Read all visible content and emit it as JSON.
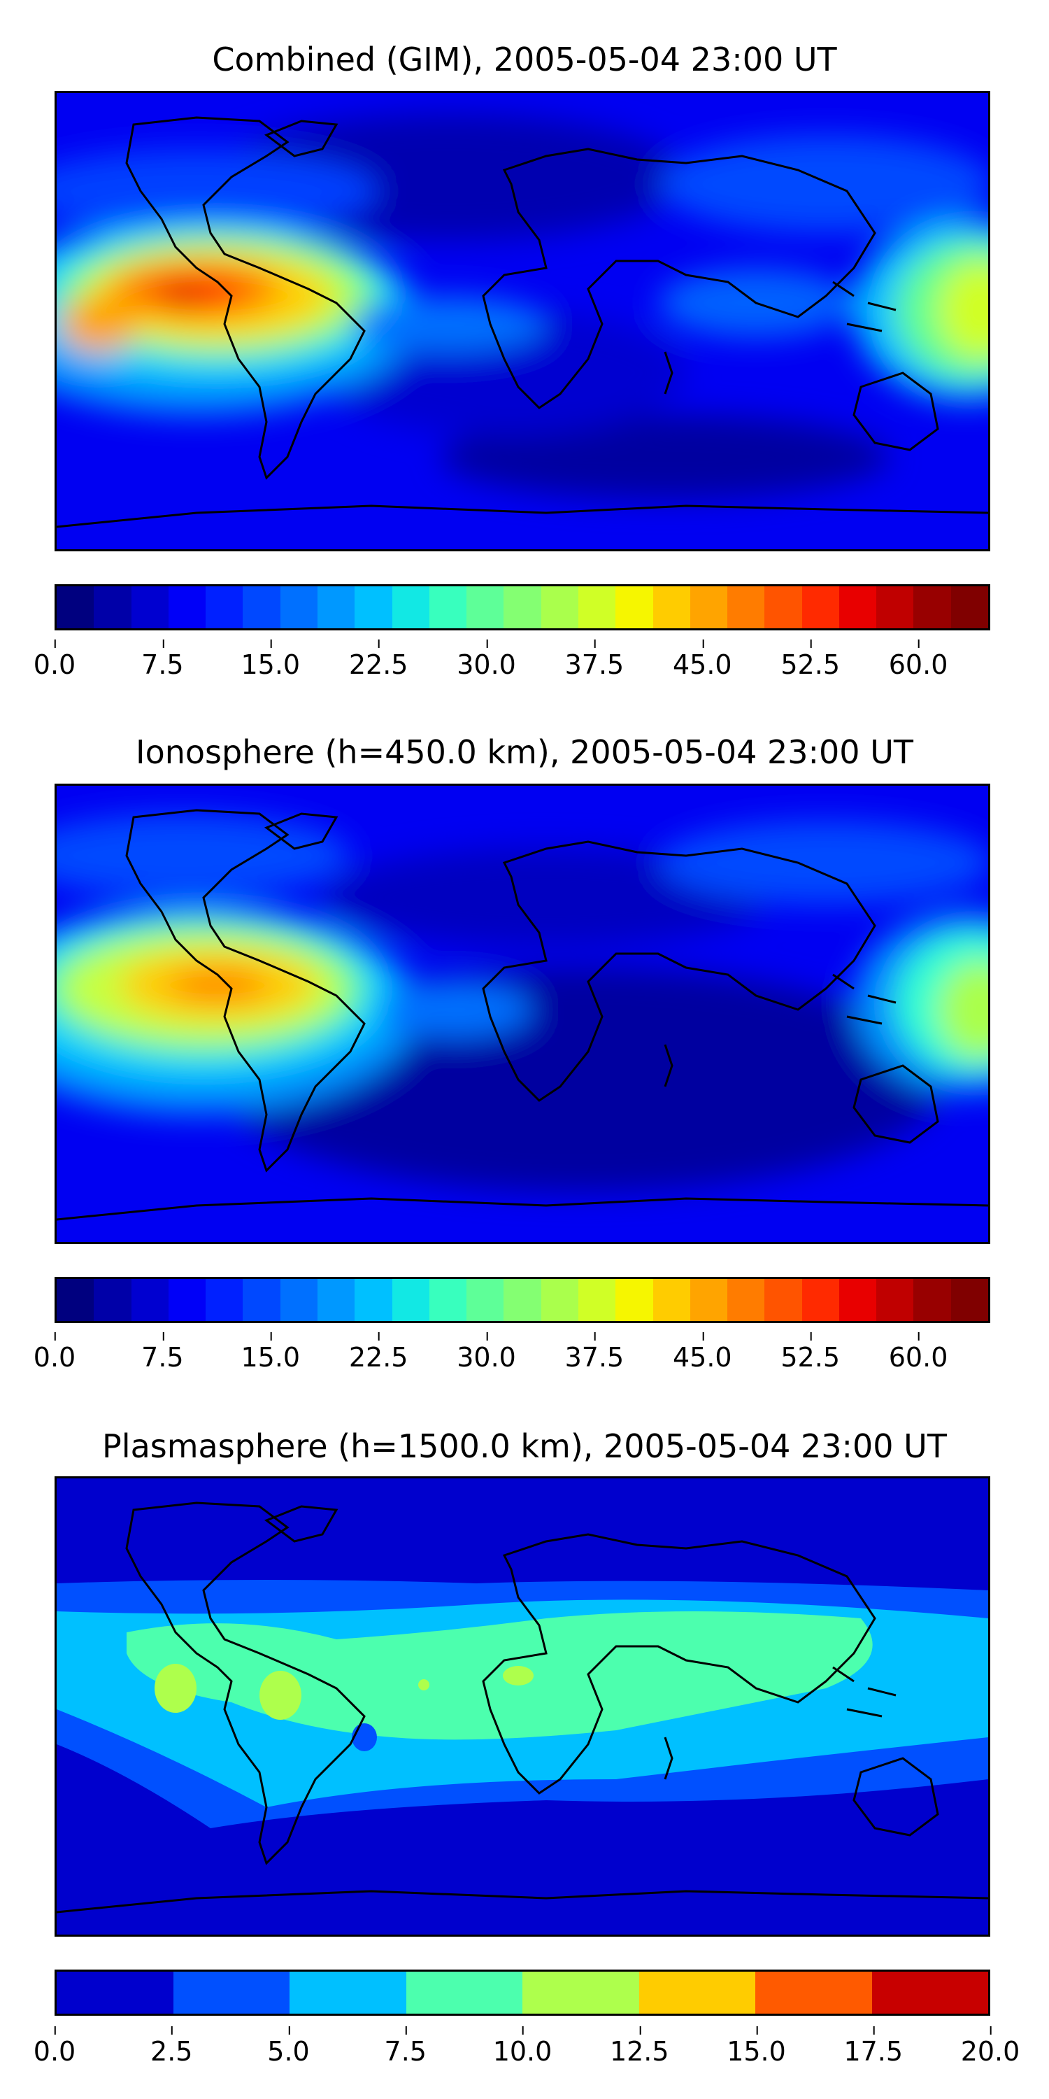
{
  "panels": [
    {
      "title": "Combined (GIM), 2005-05-04 23:00 UT",
      "colorbar": {
        "ticks": [
          "0.0",
          "7.5",
          "15.0",
          "22.5",
          "30.0",
          "37.5",
          "45.0",
          "52.5",
          "60.0"
        ],
        "tick_values": [
          0,
          7.5,
          15,
          22.5,
          30,
          37.5,
          45,
          52.5,
          60
        ],
        "min": 0,
        "max": 65,
        "colors": [
          "#00007f",
          "#0000a8",
          "#0000d0",
          "#0000f8",
          "#0020ff",
          "#0048ff",
          "#0070ff",
          "#0098ff",
          "#00c0ff",
          "#12e8e4",
          "#38ffbe",
          "#5eff98",
          "#84ff72",
          "#aaff4c",
          "#d0ff26",
          "#f6f600",
          "#ffcc00",
          "#ffa400",
          "#ff7c00",
          "#ff5400",
          "#ff2a00",
          "#e80000",
          "#c00000",
          "#980000",
          "#800000"
        ]
      }
    },
    {
      "title": "Ionosphere  (h=450.0 km), 2005-05-04 23:00 UT",
      "colorbar": {
        "ticks": [
          "0.0",
          "7.5",
          "15.0",
          "22.5",
          "30.0",
          "37.5",
          "45.0",
          "52.5",
          "60.0"
        ],
        "tick_values": [
          0,
          7.5,
          15,
          22.5,
          30,
          37.5,
          45,
          52.5,
          60
        ],
        "min": 0,
        "max": 65,
        "colors": [
          "#00007f",
          "#0000a8",
          "#0000d0",
          "#0000f8",
          "#0020ff",
          "#0048ff",
          "#0070ff",
          "#0098ff",
          "#00c0ff",
          "#12e8e4",
          "#38ffbe",
          "#5eff98",
          "#84ff72",
          "#aaff4c",
          "#d0ff26",
          "#f6f600",
          "#ffcc00",
          "#ffa400",
          "#ff7c00",
          "#ff5400",
          "#ff2a00",
          "#e80000",
          "#c00000",
          "#980000",
          "#800000"
        ]
      }
    },
    {
      "title": "Plasmasphere (h=1500.0 km), 2005-05-04 23:00 UT",
      "colorbar": {
        "ticks": [
          "0.0",
          "2.5",
          "5.0",
          "7.5",
          "10.0",
          "12.5",
          "15.0",
          "17.5",
          "20.0"
        ],
        "tick_values": [
          0,
          2.5,
          5,
          7.5,
          10,
          12.5,
          15,
          17.5,
          20
        ],
        "min": 0,
        "max": 20,
        "colors": [
          "#0000cd",
          "#0050ff",
          "#00c0ff",
          "#4cffae",
          "#aeff4c",
          "#ffcc00",
          "#ff5a00",
          "#c80000"
        ]
      }
    }
  ]
}
